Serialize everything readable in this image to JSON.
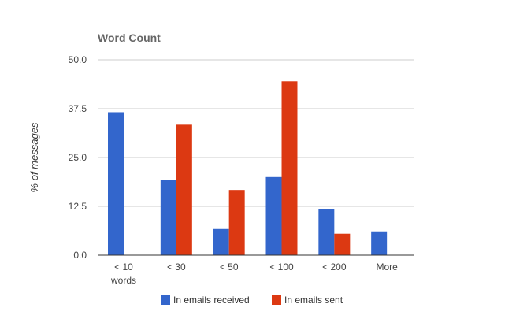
{
  "chart_data": {
    "type": "bar",
    "title": "Word Count",
    "ylabel": "% of messages",
    "xlabel": "",
    "categories": [
      [
        "< 10",
        "words"
      ],
      [
        "< 30"
      ],
      [
        "< 50"
      ],
      [
        "< 100"
      ],
      [
        "< 200"
      ],
      [
        "More"
      ]
    ],
    "series": [
      {
        "name": "In emails received",
        "color": "#3366cc",
        "values": [
          36.6,
          19.3,
          6.7,
          20.0,
          11.8,
          6.1
        ]
      },
      {
        "name": "In emails sent",
        "color": "#dc3912",
        "values": [
          0,
          33.4,
          16.7,
          44.5,
          5.5,
          0
        ]
      }
    ],
    "ylim": [
      0,
      50
    ],
    "yticks": [
      "0.0",
      "12.5",
      "25.0",
      "37.5",
      "50.0"
    ],
    "grid": true,
    "legend_position": "bottom"
  }
}
